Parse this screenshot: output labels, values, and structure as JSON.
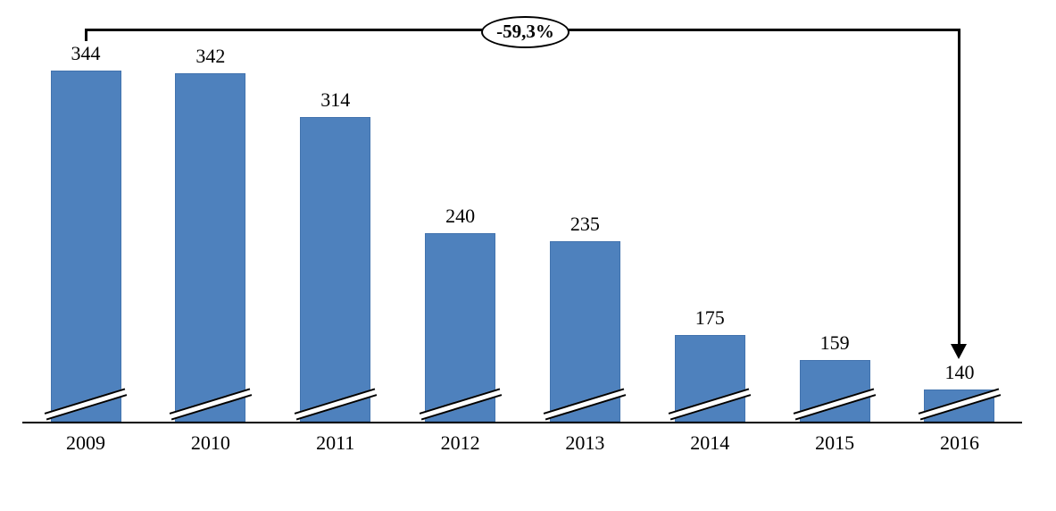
{
  "chart_data": {
    "type": "bar",
    "categories": [
      "2009",
      "2010",
      "2011",
      "2012",
      "2013",
      "2014",
      "2015",
      "2016"
    ],
    "values": [
      344,
      342,
      314,
      240,
      235,
      175,
      159,
      140
    ],
    "data_labels_visible": true,
    "bar_color": "#4e81bd",
    "axis_color": "#000000",
    "text_color": "#000000",
    "grid": "off",
    "legend": "none",
    "y_axis_visible": false,
    "x_axis_visible": true,
    "axis_break_marks_on_bars": true,
    "implied_y_start_at_break": 119,
    "annotation": {
      "label": "-59,3%",
      "from_category": "2009",
      "to_category": "2016",
      "shape": "ellipse-on-bracket-with-down-arrow"
    }
  }
}
